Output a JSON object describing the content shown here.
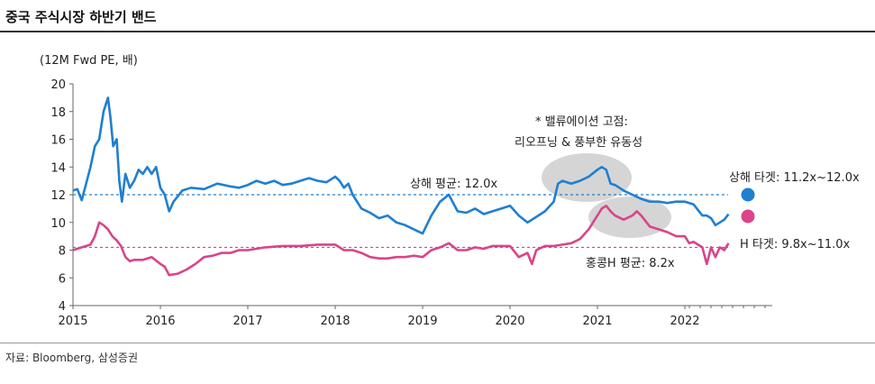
{
  "header": {
    "title": "중국 주식시장 하반기 밴드"
  },
  "footer": {
    "source": "자료: Bloomberg, 삼성증권"
  },
  "chart_data": {
    "type": "line",
    "y_unit_label": "(12M Fwd PE, 배)",
    "ylim": [
      4,
      20
    ],
    "xlim": [
      2015,
      2023
    ],
    "y_ticks": [
      "4",
      "6",
      "8",
      "10",
      "12",
      "14",
      "16",
      "18",
      "20"
    ],
    "x_ticks": [
      "2015",
      "2016",
      "2017",
      "2018",
      "2019",
      "2020",
      "2021",
      "2022"
    ],
    "grid": false,
    "colors": {
      "shanghai": "#1f7fd1",
      "hongkong": "#d9448a",
      "highlight": "#d5d5d5"
    },
    "series": [
      {
        "key": "shanghai",
        "x": [
          2015.0,
          2015.05,
          2015.1,
          2015.15,
          2015.2,
          2015.25,
          2015.3,
          2015.35,
          2015.4,
          2015.43,
          2015.46,
          2015.5,
          2015.53,
          2015.56,
          2015.6,
          2015.65,
          2015.7,
          2015.75,
          2015.8,
          2015.85,
          2015.9,
          2015.95,
          2016.0,
          2016.05,
          2016.1,
          2016.15,
          2016.25,
          2016.35,
          2016.5,
          2016.65,
          2016.8,
          2016.9,
          2017.0,
          2017.1,
          2017.2,
          2017.3,
          2017.4,
          2017.5,
          2017.6,
          2017.7,
          2017.8,
          2017.9,
          2018.0,
          2018.05,
          2018.1,
          2018.15,
          2018.2,
          2018.3,
          2018.4,
          2018.5,
          2018.6,
          2018.7,
          2018.8,
          2018.9,
          2019.0,
          2019.1,
          2019.2,
          2019.3,
          2019.4,
          2019.5,
          2019.6,
          2019.7,
          2019.8,
          2019.9,
          2020.0,
          2020.1,
          2020.2,
          2020.3,
          2020.4,
          2020.5,
          2020.55,
          2020.6,
          2020.7,
          2020.8,
          2020.9,
          2021.0,
          2021.05,
          2021.1,
          2021.15,
          2021.2,
          2021.3,
          2021.4,
          2021.5,
          2021.6,
          2021.7,
          2021.8,
          2021.9,
          2022.0,
          2022.1,
          2022.2,
          2022.25,
          2022.3,
          2022.35,
          2022.4,
          2022.45,
          2022.5
        ],
        "y": [
          12.3,
          12.4,
          11.6,
          12.8,
          14.0,
          15.5,
          16.0,
          18.0,
          19.0,
          17.5,
          15.5,
          16.0,
          13.0,
          11.5,
          13.5,
          12.5,
          13.0,
          13.8,
          13.5,
          14.0,
          13.5,
          14.0,
          12.5,
          12.0,
          10.8,
          11.5,
          12.3,
          12.5,
          12.4,
          12.8,
          12.6,
          12.5,
          12.7,
          13.0,
          12.8,
          13.0,
          12.7,
          12.8,
          13.0,
          13.2,
          13.0,
          12.9,
          13.3,
          13.0,
          12.5,
          12.8,
          12.0,
          11.0,
          10.7,
          10.3,
          10.5,
          10.0,
          9.8,
          9.5,
          9.2,
          10.5,
          11.5,
          12.0,
          10.8,
          10.7,
          11.0,
          10.6,
          10.8,
          11.0,
          11.2,
          10.5,
          10.0,
          10.4,
          10.8,
          11.5,
          12.8,
          13.0,
          12.8,
          13.0,
          13.3,
          13.8,
          14.0,
          13.8,
          12.8,
          12.7,
          12.3,
          12.0,
          11.7,
          11.5,
          11.5,
          11.4,
          11.5,
          11.5,
          11.3,
          10.5,
          10.5,
          10.3,
          9.8,
          10.0,
          10.2,
          10.6
        ]
      },
      {
        "key": "hongkong",
        "x": [
          2015.0,
          2015.1,
          2015.2,
          2015.25,
          2015.3,
          2015.35,
          2015.4,
          2015.45,
          2015.5,
          2015.55,
          2015.6,
          2015.65,
          2015.7,
          2015.8,
          2015.9,
          2016.0,
          2016.05,
          2016.1,
          2016.2,
          2016.3,
          2016.4,
          2016.5,
          2016.6,
          2016.7,
          2016.8,
          2016.9,
          2017.0,
          2017.2,
          2017.4,
          2017.6,
          2017.8,
          2018.0,
          2018.05,
          2018.1,
          2018.2,
          2018.3,
          2018.4,
          2018.5,
          2018.6,
          2018.7,
          2018.8,
          2018.9,
          2019.0,
          2019.1,
          2019.2,
          2019.3,
          2019.4,
          2019.5,
          2019.6,
          2019.7,
          2019.8,
          2019.9,
          2020.0,
          2020.1,
          2020.2,
          2020.25,
          2020.3,
          2020.4,
          2020.5,
          2020.6,
          2020.7,
          2020.8,
          2020.9,
          2021.0,
          2021.05,
          2021.1,
          2021.15,
          2021.2,
          2021.3,
          2021.4,
          2021.45,
          2021.5,
          2021.6,
          2021.7,
          2021.8,
          2021.9,
          2022.0,
          2022.05,
          2022.1,
          2022.15,
          2022.2,
          2022.25,
          2022.3,
          2022.35,
          2022.4,
          2022.45,
          2022.5
        ],
        "y": [
          8.0,
          8.2,
          8.4,
          9.0,
          10.0,
          9.8,
          9.5,
          9.0,
          8.7,
          8.3,
          7.5,
          7.2,
          7.3,
          7.3,
          7.5,
          7.0,
          6.8,
          6.2,
          6.3,
          6.6,
          7.0,
          7.5,
          7.6,
          7.8,
          7.8,
          8.0,
          8.0,
          8.2,
          8.3,
          8.3,
          8.4,
          8.4,
          8.2,
          8.0,
          8.0,
          7.8,
          7.5,
          7.4,
          7.4,
          7.5,
          7.5,
          7.6,
          7.5,
          8.0,
          8.2,
          8.5,
          8.0,
          8.0,
          8.2,
          8.1,
          8.3,
          8.3,
          8.3,
          7.5,
          7.8,
          7.0,
          8.0,
          8.3,
          8.3,
          8.4,
          8.5,
          8.8,
          9.5,
          10.5,
          11.0,
          11.2,
          10.8,
          10.5,
          10.2,
          10.5,
          10.8,
          10.5,
          9.7,
          9.5,
          9.3,
          9.0,
          9.0,
          8.5,
          8.6,
          8.4,
          8.2,
          7.0,
          8.2,
          7.5,
          8.2,
          8.0,
          8.5
        ]
      }
    ],
    "reference_lines": [
      {
        "key": "shanghai",
        "y": 12.0,
        "label": "상해  평균: 12.0x"
      },
      {
        "key": "hongkong",
        "y": 8.2,
        "label": "홍콩H 평균: 8.2x"
      }
    ],
    "annotation": {
      "line1": "* 밸류에이션 고점:",
      "line2": "리오프닝 & 풍부한 유동성"
    },
    "legend": {
      "position": "right",
      "items": [
        {
          "key": "shanghai",
          "label": "상해 타겟: 11.2x~12.0x"
        },
        {
          "key": "hongkong",
          "label": "H 타겟: 9.8x~11.0x"
        }
      ]
    }
  }
}
